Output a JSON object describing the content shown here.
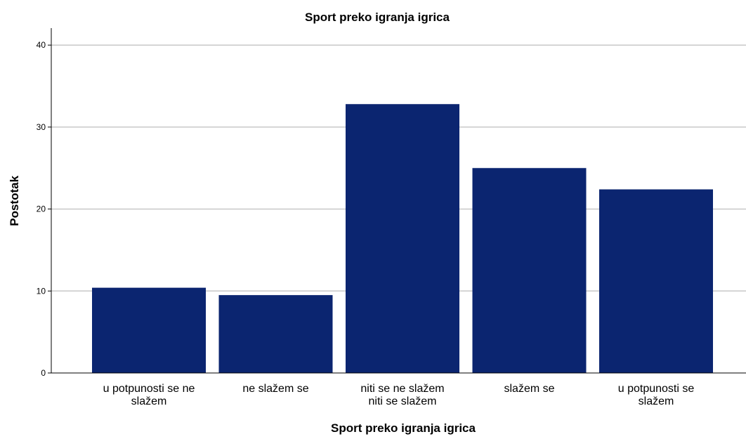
{
  "chart_data": {
    "type": "bar",
    "title": "Sport preko igranja igrica",
    "xlabel": "Sport preko igranja igrica",
    "ylabel": "Postotak",
    "categories": [
      [
        "u potpunosti se ne",
        "slažem"
      ],
      [
        "ne slažem se"
      ],
      [
        "niti se ne slažem",
        "niti se slažem"
      ],
      [
        "slažem se"
      ],
      [
        "u potpunosti se",
        "slažem"
      ]
    ],
    "values": [
      10.4,
      9.5,
      32.8,
      25.0,
      22.4
    ],
    "ylim": [
      0,
      42
    ],
    "yticks": [
      0,
      10,
      20,
      30,
      40
    ],
    "grid": true,
    "legend": "none",
    "bar_color": "#0b2570",
    "grid_color": "#c8c8c8"
  }
}
